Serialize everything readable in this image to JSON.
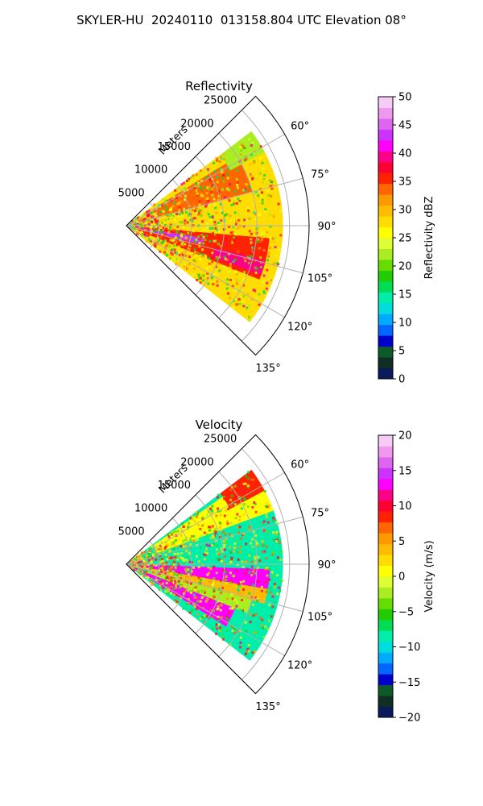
{
  "figure": {
    "title": "SKYLER-HU  20240110  013158.804 UTC Elevation 08°"
  },
  "chart_data": [
    {
      "type": "heatmap",
      "title": "Reflectivity",
      "projection": "polar sector (PPI)",
      "radial_label": "Meters",
      "radial_ticks": [
        5000,
        10000,
        15000,
        20000,
        25000
      ],
      "radial_tick_labels": [
        "5000",
        "10000",
        "15000",
        "20000",
        "25000"
      ],
      "range_max": 28000,
      "angle_ticks": [
        60,
        75,
        90,
        105,
        120,
        135
      ],
      "angle_tick_labels": [
        "60°",
        "75°",
        "90°",
        "105°",
        "120°",
        "135°"
      ],
      "azimuth_range": [
        45,
        135
      ],
      "data_azimuth_range": [
        53,
        128
      ],
      "grid": true,
      "colorbar": {
        "label": "Reflectivity dBZ",
        "vmin": 0,
        "vmax": 50,
        "ticks": [
          0,
          5,
          10,
          15,
          20,
          25,
          30,
          35,
          40,
          45,
          50
        ],
        "tick_labels": [
          "0",
          "5",
          "10",
          "15",
          "20",
          "25",
          "30",
          "35",
          "40",
          "45",
          "50"
        ],
        "colors": [
          "#0a1a5c",
          "#102e24",
          "#0c5a2a",
          "#0000cc",
          "#0066ff",
          "#00aaff",
          "#00dddd",
          "#00eeaa",
          "#00dd55",
          "#22cc00",
          "#66dd00",
          "#aaee22",
          "#ddff33",
          "#ffff00",
          "#ffdd00",
          "#ffbb00",
          "#ff9900",
          "#ff6600",
          "#ff2200",
          "#ff0033",
          "#ff0088",
          "#ff00ff",
          "#cc33ff",
          "#dd66ee",
          "#ee99ee",
          "#f6ccf6"
        ]
      },
      "features": [
        {
          "azimuth_range": [
            53,
            128
          ],
          "range": [
            0,
            24000
          ],
          "value": 28
        },
        {
          "azimuth_range": [
            95,
            112
          ],
          "range": [
            0,
            22000
          ],
          "value": 36
        },
        {
          "azimuth_range": [
            99,
            104
          ],
          "range": [
            0,
            12000
          ],
          "value": 43
        },
        {
          "azimuth_range": [
            58,
            75
          ],
          "range": [
            5000,
            20000
          ],
          "value": 34
        },
        {
          "azimuth_range": [
            104,
            110
          ],
          "range": [
            14000,
            22000
          ],
          "value": 40
        },
        {
          "azimuth_range": [
            53,
            62
          ],
          "range": [
            18000,
            24000
          ],
          "value": 22
        }
      ]
    },
    {
      "type": "heatmap",
      "title": "Velocity",
      "projection": "polar sector (PPI)",
      "radial_label": "Meters",
      "radial_ticks": [
        5000,
        10000,
        15000,
        20000,
        25000
      ],
      "radial_tick_labels": [
        "5000",
        "10000",
        "15000",
        "20000",
        "25000"
      ],
      "range_max": 28000,
      "angle_ticks": [
        60,
        75,
        90,
        105,
        120,
        135
      ],
      "angle_tick_labels": [
        "60°",
        "75°",
        "90°",
        "105°",
        "120°",
        "135°"
      ],
      "azimuth_range": [
        45,
        135
      ],
      "data_azimuth_range": [
        53,
        128
      ],
      "grid": true,
      "colorbar": {
        "label": "Velocity (m/s)",
        "vmin": -20,
        "vmax": 20,
        "ticks": [
          -20,
          -15,
          -10,
          -5,
          0,
          5,
          10,
          15,
          20
        ],
        "tick_labels": [
          "−20",
          "−15",
          "−10",
          "−5",
          "0",
          "5",
          "10",
          "15",
          "20"
        ],
        "colors": [
          "#0a1a5c",
          "#102e24",
          "#0c5a2a",
          "#0000cc",
          "#0066ff",
          "#00aaff",
          "#00dddd",
          "#00eeaa",
          "#00dd55",
          "#22cc00",
          "#66dd00",
          "#aaee22",
          "#ddff33",
          "#ffff00",
          "#ffdd00",
          "#ffbb00",
          "#ff9900",
          "#ff6600",
          "#ff2200",
          "#ff0033",
          "#ff0088",
          "#ff00ff",
          "#cc33ff",
          "#dd66ee",
          "#ee99ee",
          "#f6ccf6"
        ]
      },
      "features": [
        {
          "azimuth_range": [
            53,
            128
          ],
          "range": [
            0,
            24000
          ],
          "value": -8
        },
        {
          "azimuth_range": [
            55,
            70
          ],
          "range": [
            5000,
            24000
          ],
          "value": 0
        },
        {
          "azimuth_range": [
            53,
            62
          ],
          "range": [
            18000,
            24000
          ],
          "value": 9
        },
        {
          "azimuth_range": [
            92,
            100
          ],
          "range": [
            0,
            22000
          ],
          "value": 13
        },
        {
          "azimuth_range": [
            100,
            106
          ],
          "range": [
            0,
            22000
          ],
          "value": 4
        },
        {
          "azimuth_range": [
            112,
            122
          ],
          "range": [
            0,
            18000
          ],
          "value": 13
        },
        {
          "azimuth_range": [
            106,
            112
          ],
          "range": [
            4000,
            20000
          ],
          "value": -3
        }
      ]
    }
  ]
}
